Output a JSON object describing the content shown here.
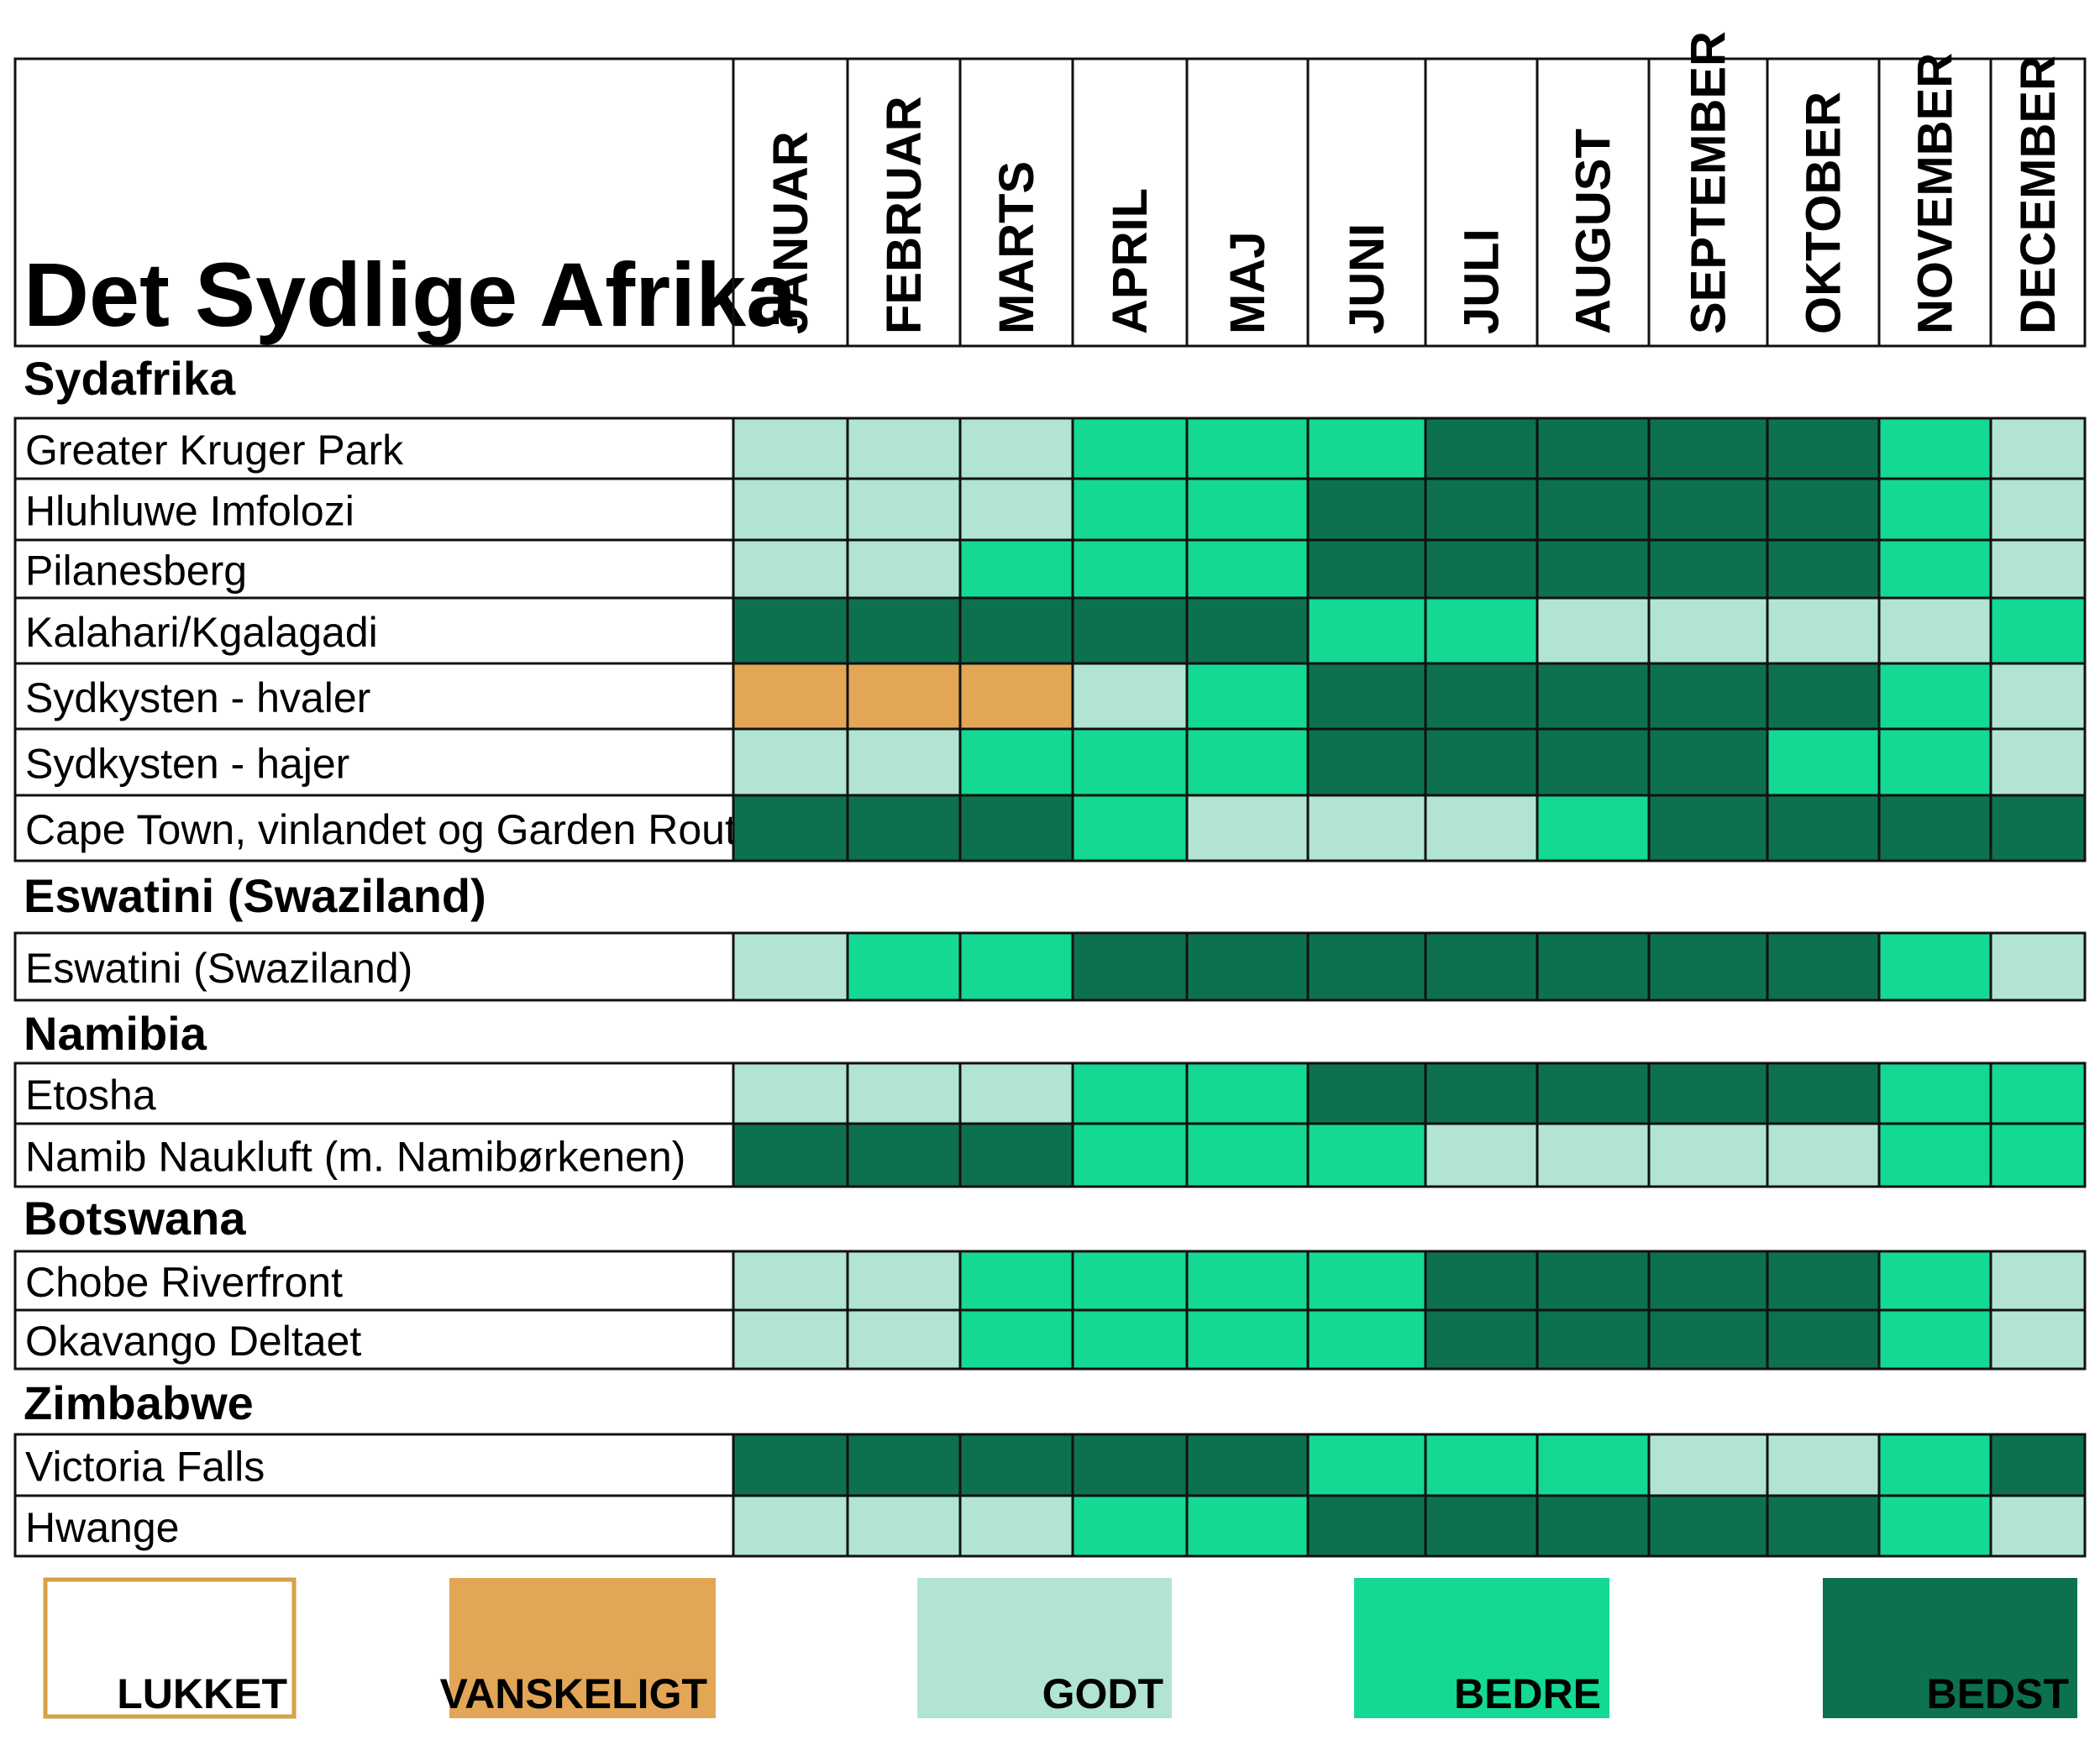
{
  "chart_data": {
    "type": "table",
    "title": "Det Sydlige Afrika",
    "months": [
      "JANUAR",
      "FEBRUAR",
      "MARTS",
      "APRIL",
      "MAJ",
      "JUNI",
      "JULI",
      "AUGUST",
      "SEPTEMBER",
      "OKTOBER",
      "NOVEMBER",
      "DECEMBER"
    ],
    "rating_scale": {
      "0": "LUKKET",
      "1": "VANSKELIGT",
      "2": "GODT",
      "3": "BEDRE",
      "4": "BEDST"
    },
    "colors": {
      "LUKKET": "#ffffff",
      "VANSKELIGT": "#e2a656",
      "GODT": "#b1e4d3",
      "BEDRE": "#14d993",
      "BEDST": "#0d7150",
      "lukket_border": "#d6a147",
      "grid": "#111111"
    },
    "groups": [
      {
        "name": "Sydafrika",
        "rows": [
          {
            "label": "Greater Kruger Park",
            "ratings": [
              2,
              2,
              2,
              3,
              3,
              3,
              4,
              4,
              4,
              4,
              3,
              2
            ]
          },
          {
            "label": "Hluhluwe Imfolozi",
            "ratings": [
              2,
              2,
              2,
              3,
              3,
              4,
              4,
              4,
              4,
              4,
              3,
              2
            ]
          },
          {
            "label": "Pilanesberg",
            "ratings": [
              2,
              2,
              3,
              3,
              3,
              4,
              4,
              4,
              4,
              4,
              3,
              2
            ]
          },
          {
            "label": "Kalahari/Kgalagadi",
            "ratings": [
              4,
              4,
              4,
              4,
              4,
              3,
              3,
              2,
              2,
              2,
              2,
              3
            ]
          },
          {
            "label": "Sydkysten - hvaler",
            "ratings": [
              1,
              1,
              1,
              2,
              3,
              4,
              4,
              4,
              4,
              4,
              3,
              2
            ]
          },
          {
            "label": "Sydkysten - hajer",
            "ratings": [
              2,
              2,
              3,
              3,
              3,
              4,
              4,
              4,
              4,
              3,
              3,
              2
            ]
          },
          {
            "label": "Cape Town, vinlandet og Garden Route",
            "ratings": [
              4,
              4,
              4,
              3,
              2,
              2,
              2,
              3,
              4,
              4,
              4,
              4
            ]
          }
        ]
      },
      {
        "name": "Eswatini (Swaziland)",
        "rows": [
          {
            "label": "Eswatini (Swaziland)",
            "ratings": [
              2,
              3,
              3,
              4,
              4,
              4,
              4,
              4,
              4,
              4,
              3,
              2
            ]
          }
        ]
      },
      {
        "name": "Namibia",
        "rows": [
          {
            "label": "Etosha",
            "ratings": [
              2,
              2,
              2,
              3,
              3,
              4,
              4,
              4,
              4,
              4,
              3,
              3
            ]
          },
          {
            "label": "Namib Naukluft (m. Namibørkenen)",
            "ratings": [
              4,
              4,
              4,
              3,
              3,
              3,
              2,
              2,
              2,
              2,
              3,
              3
            ]
          }
        ]
      },
      {
        "name": "Botswana",
        "rows": [
          {
            "label": "Chobe Riverfront",
            "ratings": [
              2,
              2,
              3,
              3,
              3,
              3,
              4,
              4,
              4,
              4,
              3,
              2
            ]
          },
          {
            "label": "Okavango Deltaet",
            "ratings": [
              2,
              2,
              3,
              3,
              3,
              3,
              4,
              4,
              4,
              4,
              3,
              2
            ]
          }
        ]
      },
      {
        "name": "Zimbabwe",
        "rows": [
          {
            "label": "Victoria Falls",
            "ratings": [
              4,
              4,
              4,
              4,
              4,
              3,
              3,
              3,
              2,
              2,
              3,
              4
            ]
          },
          {
            "label": "Hwange",
            "ratings": [
              2,
              2,
              2,
              3,
              3,
              4,
              4,
              4,
              4,
              4,
              3,
              2
            ]
          }
        ]
      }
    ],
    "legend": [
      {
        "label": "LUKKET",
        "rating": 0
      },
      {
        "label": "VANSKELIGT",
        "rating": 1
      },
      {
        "label": "GODT",
        "rating": 2
      },
      {
        "label": "BEDRE",
        "rating": 3
      },
      {
        "label": "BEDST",
        "rating": 4
      }
    ]
  }
}
